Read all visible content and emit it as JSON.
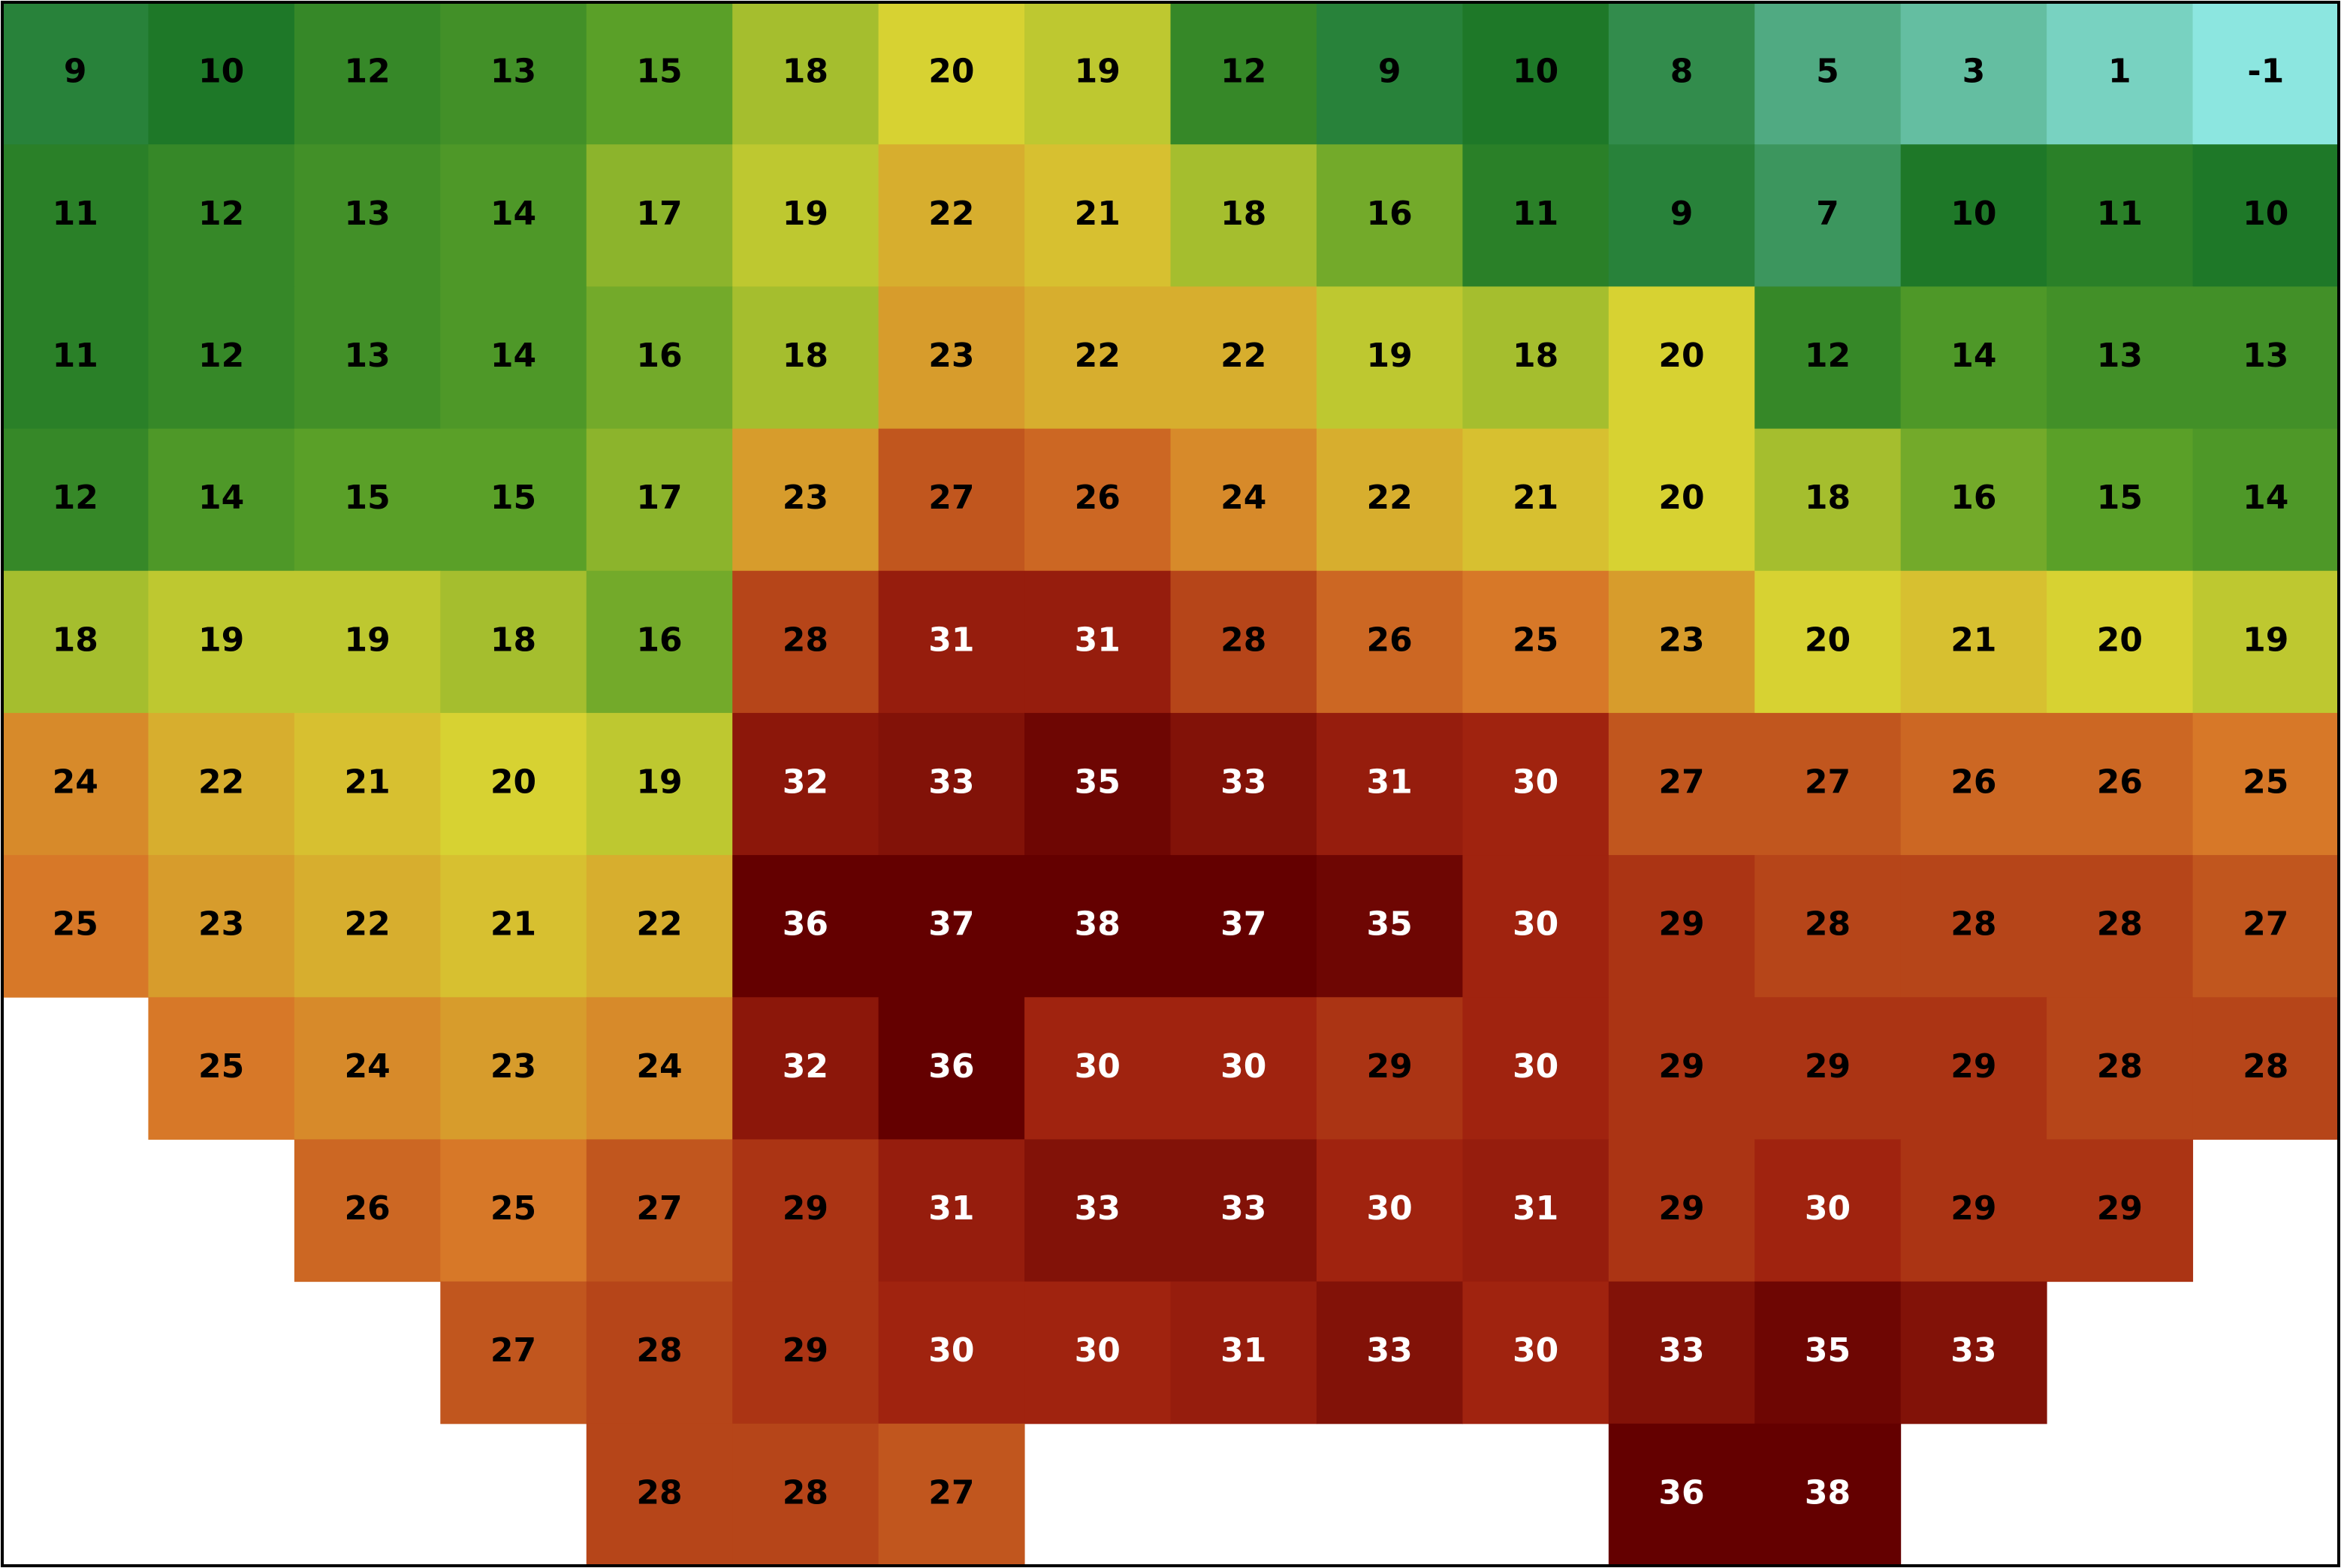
{
  "map": {
    "type": "temperature-grid",
    "grid": [
      [
        9,
        10,
        12,
        13,
        15,
        18,
        20,
        19,
        12,
        9,
        10,
        8,
        5,
        3,
        1,
        -1
      ],
      [
        11,
        12,
        13,
        14,
        17,
        19,
        22,
        21,
        18,
        16,
        11,
        9,
        7,
        10,
        11,
        10
      ],
      [
        11,
        12,
        13,
        14,
        16,
        18,
        23,
        22,
        22,
        19,
        18,
        20,
        12,
        14,
        13,
        13
      ],
      [
        12,
        14,
        15,
        15,
        17,
        23,
        27,
        26,
        24,
        22,
        21,
        20,
        18,
        16,
        15,
        14
      ],
      [
        18,
        19,
        19,
        18,
        16,
        28,
        31,
        31,
        28,
        26,
        25,
        23,
        20,
        21,
        20,
        19
      ],
      [
        24,
        22,
        21,
        20,
        19,
        32,
        33,
        35,
        33,
        31,
        30,
        27,
        27,
        26,
        26,
        25
      ],
      [
        25,
        23,
        22,
        21,
        22,
        36,
        37,
        38,
        37,
        35,
        30,
        29,
        28,
        28,
        28,
        27
      ],
      [
        null,
        25,
        24,
        23,
        24,
        32,
        36,
        30,
        30,
        29,
        30,
        29,
        29,
        29,
        28,
        28
      ],
      [
        null,
        null,
        26,
        25,
        27,
        29,
        31,
        33,
        33,
        30,
        31,
        29,
        30,
        29,
        29,
        null
      ],
      [
        null,
        null,
        null,
        27,
        28,
        29,
        30,
        30,
        31,
        33,
        30,
        33,
        35,
        33,
        null,
        null
      ],
      [
        null,
        null,
        null,
        null,
        28,
        28,
        27,
        null,
        null,
        null,
        null,
        36,
        38,
        null,
        null,
        null
      ]
    ]
  }
}
